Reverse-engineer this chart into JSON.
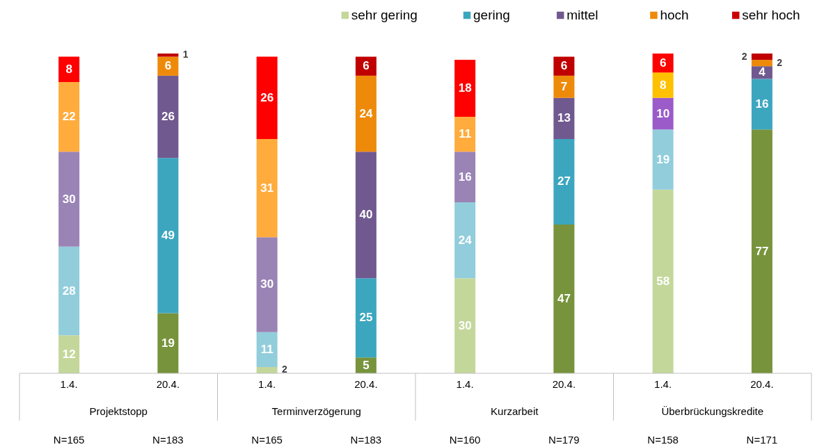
{
  "chart_data": {
    "type": "bar",
    "stacked": true,
    "data_labels": true,
    "legend": "top right",
    "tick_labels": "x",
    "ylim": [
      0,
      101
    ],
    "categories": [
      "1.4.",
      "20.4.",
      "1.4.",
      "20.4.",
      "1.4.",
      "20.4.",
      "1.4.",
      "20.4."
    ],
    "series": [
      {
        "name": "sehr gering",
        "color": "#c4d79b",
        "colors": [
          "#c4d79b",
          "#77933c",
          "#c4d79b",
          "#77933c",
          "#c4d79b",
          "#77933c",
          "#c4d79b",
          "#77933c"
        ],
        "values": [
          12,
          19,
          2,
          5,
          30,
          47,
          58,
          77
        ]
      },
      {
        "name": "gering",
        "color": "#3ca6bf",
        "colors": [
          "#92cddc",
          "#3ca6bf",
          "#92cddc",
          "#3ca6bf",
          "#92cddc",
          "#3ca6bf",
          "#92cddc",
          "#3ca6bf"
        ],
        "values": [
          28,
          49,
          11,
          25,
          24,
          27,
          19,
          16
        ]
      },
      {
        "name": "mittel",
        "color": "#70598f",
        "colors": [
          "#9a84b6",
          "#70598f",
          "#9a84b6",
          "#70598f",
          "#9a84b6",
          "#70598f",
          "#9b5bc9",
          "#70598f"
        ],
        "values": [
          30,
          26,
          30,
          40,
          16,
          13,
          10,
          4
        ]
      },
      {
        "name": "hoch",
        "color": "#ee8a0a",
        "colors": [
          "#ffac3d",
          "#ee8a0a",
          "#ffac3d",
          "#ee8a0a",
          "#ffac3d",
          "#ee8a0a",
          "#ffc000",
          "#ee8a0a"
        ],
        "values": [
          22,
          6,
          31,
          24,
          11,
          7,
          8,
          2
        ]
      },
      {
        "name": "sehr hoch",
        "color": "#cc0000",
        "colors": [
          "#ff0000",
          "#c00000",
          "#ff0000",
          "#c00000",
          "#ff0000",
          "#c00000",
          "#ff0000",
          "#c00000"
        ],
        "values": [
          8,
          1,
          26,
          6,
          18,
          6,
          6,
          2
        ]
      }
    ],
    "annotations": [
      "Projektstopp",
      "Terminverzögerung",
      "Kurzarbeit",
      "Überbrückungskredite",
      "N=165",
      "N=183",
      "N=165",
      "N=183",
      "N=160",
      "N=179",
      "N=158",
      "N=171"
    ]
  }
}
